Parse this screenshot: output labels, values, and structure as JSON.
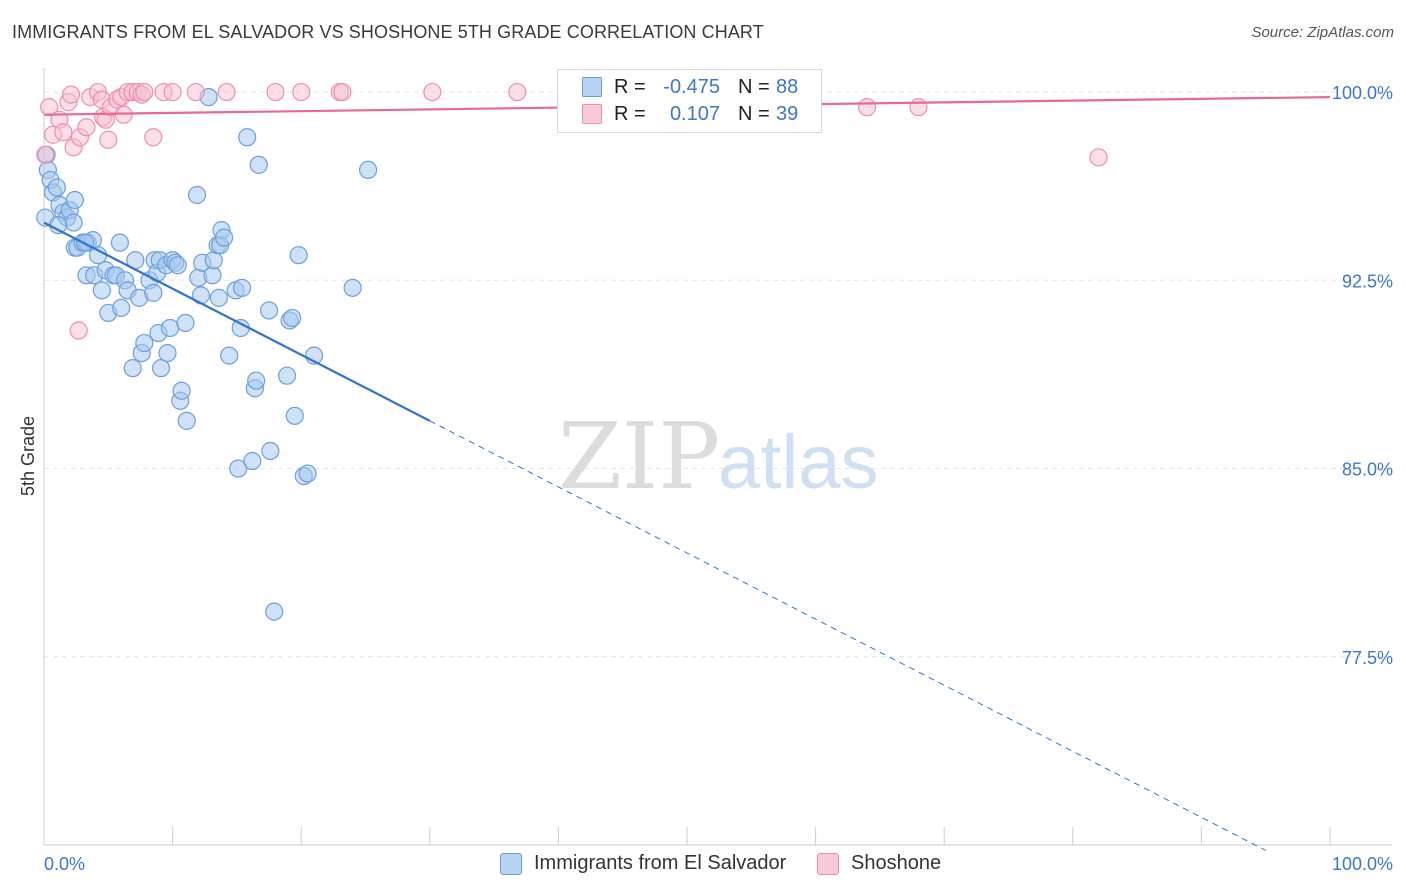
{
  "header": {
    "title": "IMMIGRANTS FROM EL SALVADOR VS SHOSHONE 5TH GRADE CORRELATION CHART",
    "source": "Source: ZipAtlas.com"
  },
  "colors": {
    "blue_fill": "#a8c8ee",
    "blue_stroke": "#6b9fdc",
    "blue_line": "#2f74d0",
    "pink_fill": "#f6c0d2",
    "pink_stroke": "#ee8fb0",
    "pink_line": "#e8689a",
    "tick_label": "#3a78c9",
    "grid": "#e4e4e4"
  },
  "legend": {
    "rows": [
      {
        "r_label": "R =",
        "r_value": "-0.475",
        "n_label": "N =",
        "n_value": "88"
      },
      {
        "r_label": "R =",
        "r_value": "0.107",
        "n_label": "N =",
        "n_value": "39"
      }
    ],
    "bottom": [
      {
        "label": "Immigrants from El Salvador"
      },
      {
        "label": "Shoshone"
      }
    ]
  },
  "watermark": {
    "zip": "ZIP",
    "atlas": "atlas"
  },
  "chart_data": {
    "type": "scatter",
    "title": "IMMIGRANTS FROM EL SALVADOR VS SHOSHONE 5TH GRADE CORRELATION CHART",
    "xlabel": "",
    "ylabel": "5th Grade",
    "xlim": [
      0,
      100
    ],
    "ylim": [
      70.0,
      100.8
    ],
    "x_tick_labels": [
      "0.0%",
      "100.0%"
    ],
    "y_ticks": [
      100.0,
      92.5,
      85.0,
      77.5
    ],
    "y_tick_labels": [
      "100.0%",
      "92.5%",
      "85.0%",
      "77.5%"
    ],
    "series": [
      {
        "name": "Immigrants from El Salvador",
        "r": -0.475,
        "n": 88,
        "trend": {
          "x0": 0.0,
          "y0": 94.8,
          "x1": 30.0,
          "y1": 86.9,
          "dash_to_x": 95.0
        },
        "points": [
          [
            0.2,
            97.5
          ],
          [
            0.3,
            96.9
          ],
          [
            0.5,
            96.5
          ],
          [
            0.7,
            96.0
          ],
          [
            1.0,
            96.2
          ],
          [
            1.2,
            95.5
          ],
          [
            1.5,
            95.2
          ],
          [
            1.8,
            95.0
          ],
          [
            2.0,
            95.3
          ],
          [
            2.3,
            94.8
          ],
          [
            2.4,
            95.7
          ],
          [
            2.4,
            93.8
          ],
          [
            2.6,
            93.8
          ],
          [
            3.0,
            94.0
          ],
          [
            3.3,
            92.7
          ],
          [
            3.4,
            94.0
          ],
          [
            3.8,
            94.1
          ],
          [
            3.9,
            92.7
          ],
          [
            4.2,
            93.5
          ],
          [
            4.5,
            92.1
          ],
          [
            4.8,
            92.9
          ],
          [
            5.0,
            91.2
          ],
          [
            5.4,
            92.7
          ],
          [
            5.6,
            92.7
          ],
          [
            5.9,
            94.0
          ],
          [
            6.0,
            91.4
          ],
          [
            6.3,
            92.5
          ],
          [
            6.5,
            92.1
          ],
          [
            6.9,
            89.0
          ],
          [
            7.1,
            93.3
          ],
          [
            7.4,
            91.8
          ],
          [
            7.6,
            89.6
          ],
          [
            7.8,
            90.0
          ],
          [
            8.2,
            92.5
          ],
          [
            8.5,
            92.0
          ],
          [
            8.6,
            93.3
          ],
          [
            8.8,
            92.8
          ],
          [
            8.9,
            90.4
          ],
          [
            9.0,
            93.3
          ],
          [
            9.1,
            89.0
          ],
          [
            9.5,
            93.1
          ],
          [
            9.6,
            89.6
          ],
          [
            9.8,
            90.6
          ],
          [
            10.0,
            93.3
          ],
          [
            10.2,
            93.2
          ],
          [
            10.4,
            93.1
          ],
          [
            10.6,
            87.7
          ],
          [
            10.7,
            88.1
          ],
          [
            11.0,
            90.8
          ],
          [
            11.1,
            86.9
          ],
          [
            11.9,
            95.9
          ],
          [
            12.0,
            92.6
          ],
          [
            12.2,
            91.9
          ],
          [
            12.3,
            93.2
          ],
          [
            12.8,
            99.8
          ],
          [
            13.1,
            92.7
          ],
          [
            13.2,
            93.3
          ],
          [
            13.5,
            93.9
          ],
          [
            13.6,
            91.8
          ],
          [
            13.7,
            93.9
          ],
          [
            13.8,
            94.5
          ],
          [
            14.0,
            94.2
          ],
          [
            14.4,
            89.5
          ],
          [
            14.9,
            92.1
          ],
          [
            15.1,
            85.0
          ],
          [
            15.3,
            90.6
          ],
          [
            15.4,
            92.2
          ],
          [
            15.8,
            98.2
          ],
          [
            16.2,
            85.3
          ],
          [
            16.4,
            88.2
          ],
          [
            16.5,
            88.5
          ],
          [
            16.7,
            97.1
          ],
          [
            17.5,
            91.3
          ],
          [
            17.6,
            85.7
          ],
          [
            17.9,
            79.3
          ],
          [
            18.9,
            88.7
          ],
          [
            19.1,
            90.9
          ],
          [
            19.3,
            91.0
          ],
          [
            19.5,
            87.1
          ],
          [
            19.8,
            93.5
          ],
          [
            20.2,
            84.7
          ],
          [
            20.5,
            84.8
          ],
          [
            21.0,
            89.5
          ],
          [
            24.0,
            92.2
          ],
          [
            25.2,
            96.9
          ],
          [
            0.1,
            95.0
          ],
          [
            1.1,
            94.7
          ],
          [
            3.2,
            94.0
          ]
        ]
      },
      {
        "name": "Shoshone",
        "r": 0.107,
        "n": 39,
        "trend": {
          "x0": 0.0,
          "y0": 99.1,
          "x1": 100.0,
          "y1": 99.8
        },
        "points": [
          [
            0.1,
            97.5
          ],
          [
            0.4,
            99.4
          ],
          [
            0.7,
            98.3
          ],
          [
            1.2,
            98.9
          ],
          [
            1.5,
            98.4
          ],
          [
            1.9,
            99.6
          ],
          [
            2.1,
            99.9
          ],
          [
            2.3,
            97.8
          ],
          [
            2.8,
            98.2
          ],
          [
            3.3,
            98.6
          ],
          [
            3.6,
            99.8
          ],
          [
            4.2,
            100.0
          ],
          [
            4.5,
            99.7
          ],
          [
            4.6,
            99.0
          ],
          [
            4.8,
            98.9
          ],
          [
            5.0,
            98.1
          ],
          [
            5.2,
            99.4
          ],
          [
            5.7,
            99.7
          ],
          [
            6.0,
            99.8
          ],
          [
            6.2,
            99.1
          ],
          [
            6.5,
            100.0
          ],
          [
            6.9,
            100.0
          ],
          [
            7.3,
            100.0
          ],
          [
            7.6,
            99.9
          ],
          [
            7.8,
            100.0
          ],
          [
            8.5,
            98.2
          ],
          [
            9.3,
            100.0
          ],
          [
            10.0,
            100.0
          ],
          [
            11.8,
            100.0
          ],
          [
            14.2,
            100.0
          ],
          [
            18.0,
            100.0
          ],
          [
            20.0,
            100.0
          ],
          [
            23.0,
            100.0
          ],
          [
            23.2,
            100.0
          ],
          [
            30.2,
            100.0
          ],
          [
            36.8,
            100.0
          ],
          [
            64.0,
            99.4
          ],
          [
            68.0,
            99.4
          ],
          [
            82.0,
            97.4
          ]
        ]
      },
      {
        "name": "Shoshone (outliers)",
        "points": [
          [
            2.7,
            90.5
          ]
        ]
      }
    ]
  }
}
